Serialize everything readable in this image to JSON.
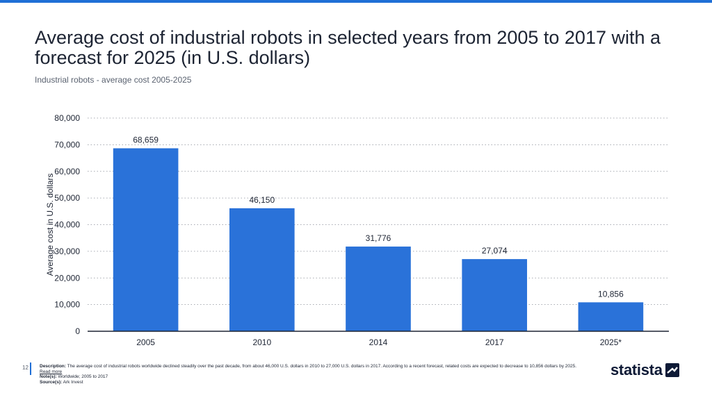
{
  "header": {
    "title": "Average cost of industrial robots in selected years from 2005 to 2017 with a forecast for 2025 (in U.S. dollars)",
    "subtitle": "Industrial robots - average cost 2005-2025"
  },
  "chart_data": {
    "type": "bar",
    "title": "Average cost of industrial robots in selected years from 2005 to 2017 with a forecast for 2025 (in U.S. dollars)",
    "categories": [
      "2005",
      "2010",
      "2014",
      "2017",
      "2025*"
    ],
    "values": [
      68659,
      46150,
      31776,
      27074,
      10856
    ],
    "value_labels": [
      "68,659",
      "46,150",
      "31,776",
      "27,074",
      "10,856"
    ],
    "xlabel": "",
    "ylabel": "Average cost in U.S. dollars",
    "ylim": [
      0,
      80000
    ],
    "yticks": [
      0,
      10000,
      20000,
      30000,
      40000,
      50000,
      60000,
      70000,
      80000
    ],
    "ytick_labels": [
      "0",
      "10,000",
      "20,000",
      "30,000",
      "40,000",
      "50,000",
      "60,000",
      "70,000",
      "80,000"
    ],
    "grid": true,
    "bar_color": "#2a72d9"
  },
  "footer": {
    "page_number": "12",
    "description_label": "Description:",
    "description": "The average cost of industrial robots worldwide declined steadily over the past decade, from about 46,000 U.S. dollars in 2010 to 27,000 U.S. dollars in 2017. According to a recent forecast, related costs are expected to decrease to 10,856 dollars by 2025.",
    "read_more": "Read more",
    "notes_label": "Note(s):",
    "notes": "Worldwide; 2005 to 2017",
    "source_label": "Source(s):",
    "source": "Ark Invest"
  },
  "logo": {
    "text": "statista",
    "icon": "statista-logo-icon"
  }
}
